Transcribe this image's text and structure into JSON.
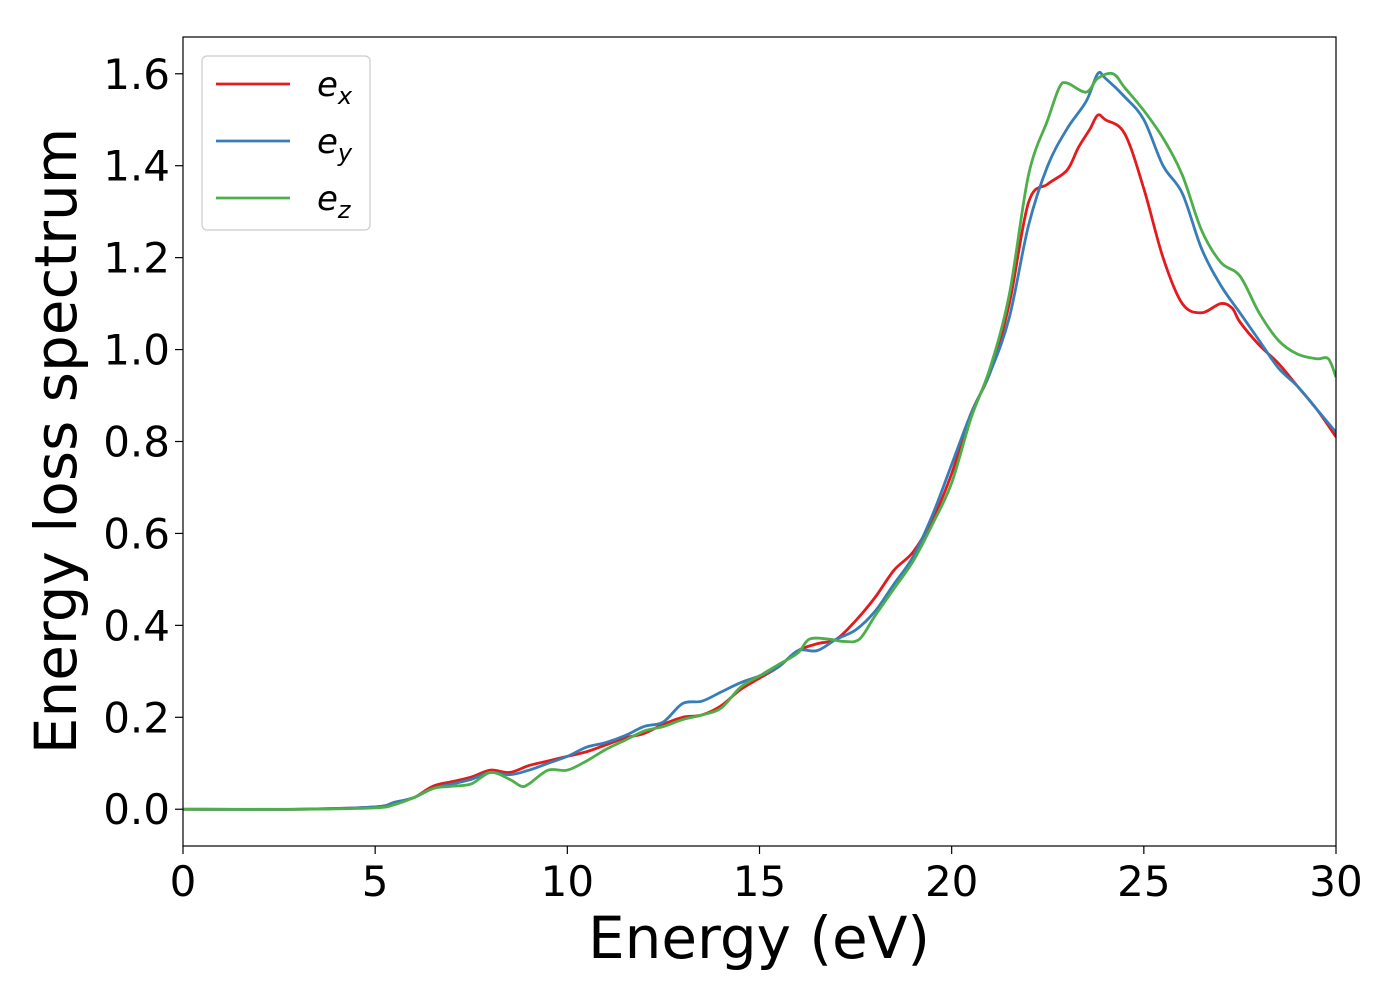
{
  "chart_data": {
    "type": "line",
    "xlabel": "Energy (eV)",
    "ylabel": "Energy loss spectrum",
    "xlim": [
      0,
      30
    ],
    "ylim": [
      -0.08,
      1.68
    ],
    "xticks": [
      0,
      5,
      10,
      15,
      20,
      25,
      30
    ],
    "xtick_labels": [
      "0",
      "5",
      "10",
      "15",
      "20",
      "25",
      "30"
    ],
    "yticks": [
      0.0,
      0.2,
      0.4,
      0.6,
      0.8,
      1.0,
      1.2,
      1.4,
      1.6
    ],
    "ytick_labels": [
      "0.0",
      "0.2",
      "0.4",
      "0.6",
      "0.8",
      "1.0",
      "1.2",
      "1.4",
      "1.6"
    ],
    "grid": false,
    "legend": "top-left",
    "series": [
      {
        "name": "e_x",
        "label_base": "e",
        "label_sub": "x",
        "color": "#e41a1c",
        "x": [
          0,
          3,
          5,
          5.5,
          6,
          6.5,
          7,
          7.5,
          8,
          8.5,
          9,
          9.5,
          10,
          10.5,
          11,
          11.5,
          12,
          12.5,
          13,
          13.5,
          14,
          14.5,
          15,
          15.5,
          16,
          16.5,
          17,
          17.5,
          18,
          18.5,
          19,
          19.5,
          20,
          20.5,
          21,
          21.5,
          22,
          22.5,
          23,
          23.3,
          23.6,
          23.8,
          24,
          24.5,
          25,
          25.5,
          26,
          26.5,
          27,
          27.3,
          27.5,
          28,
          28.5,
          29,
          29.5,
          30
        ],
        "y": [
          0.0,
          0.0,
          0.005,
          0.015,
          0.025,
          0.05,
          0.06,
          0.07,
          0.085,
          0.08,
          0.095,
          0.105,
          0.115,
          0.125,
          0.14,
          0.155,
          0.165,
          0.185,
          0.2,
          0.205,
          0.225,
          0.26,
          0.285,
          0.31,
          0.345,
          0.36,
          0.37,
          0.41,
          0.46,
          0.52,
          0.56,
          0.63,
          0.73,
          0.86,
          0.95,
          1.1,
          1.32,
          1.36,
          1.39,
          1.44,
          1.48,
          1.51,
          1.5,
          1.47,
          1.35,
          1.2,
          1.1,
          1.08,
          1.1,
          1.09,
          1.06,
          1.01,
          0.97,
          0.92,
          0.87,
          0.81
        ]
      },
      {
        "name": "e_y",
        "label_base": "e",
        "label_sub": "y",
        "color": "#377eb8",
        "x": [
          0,
          3,
          5,
          5.5,
          6,
          6.5,
          7,
          7.5,
          8,
          8.5,
          9,
          9.5,
          10,
          10.5,
          11,
          11.5,
          12,
          12.5,
          13,
          13.5,
          14,
          14.5,
          15,
          15.5,
          16,
          16.5,
          17,
          17.5,
          18,
          18.5,
          19,
          19.5,
          20,
          20.5,
          21,
          21.5,
          22,
          22.5,
          23,
          23.5,
          23.8,
          24,
          24.5,
          25,
          25.5,
          26,
          26.5,
          27,
          27.5,
          28,
          28.5,
          29,
          29.5,
          30
        ],
        "y": [
          0.0,
          0.0,
          0.005,
          0.015,
          0.025,
          0.045,
          0.055,
          0.065,
          0.08,
          0.075,
          0.085,
          0.1,
          0.115,
          0.135,
          0.145,
          0.16,
          0.18,
          0.19,
          0.23,
          0.235,
          0.255,
          0.275,
          0.29,
          0.31,
          0.345,
          0.345,
          0.37,
          0.39,
          0.43,
          0.49,
          0.55,
          0.64,
          0.75,
          0.86,
          0.95,
          1.07,
          1.27,
          1.4,
          1.48,
          1.54,
          1.6,
          1.59,
          1.55,
          1.5,
          1.4,
          1.34,
          1.22,
          1.14,
          1.08,
          1.02,
          0.96,
          0.92,
          0.87,
          0.82
        ]
      },
      {
        "name": "e_z",
        "label_base": "e",
        "label_sub": "z",
        "color": "#4daf4a",
        "x": [
          0,
          3,
          5,
          5.5,
          6,
          6.5,
          7,
          7.5,
          8,
          8.5,
          8.8,
          9,
          9.5,
          10,
          10.5,
          11,
          11.5,
          12,
          12.5,
          13,
          13.5,
          14,
          14.5,
          15,
          15.5,
          16,
          16.3,
          16.8,
          17.2,
          17.6,
          18,
          18.5,
          19,
          19.5,
          20,
          20.5,
          21,
          21.5,
          22,
          22.5,
          22.8,
          23,
          23.5,
          23.8,
          24.2,
          24.5,
          25,
          25.5,
          26,
          26.5,
          27,
          27.5,
          28,
          28.5,
          29,
          29.5,
          29.8,
          30
        ],
        "y": [
          0.0,
          0.0,
          0.003,
          0.01,
          0.025,
          0.045,
          0.05,
          0.055,
          0.08,
          0.065,
          0.05,
          0.055,
          0.085,
          0.085,
          0.105,
          0.13,
          0.15,
          0.17,
          0.18,
          0.195,
          0.205,
          0.22,
          0.265,
          0.29,
          0.315,
          0.34,
          0.37,
          0.37,
          0.365,
          0.37,
          0.42,
          0.48,
          0.54,
          0.62,
          0.71,
          0.85,
          0.96,
          1.12,
          1.38,
          1.5,
          1.57,
          1.58,
          1.56,
          1.59,
          1.6,
          1.57,
          1.52,
          1.46,
          1.38,
          1.26,
          1.19,
          1.16,
          1.08,
          1.02,
          0.99,
          0.98,
          0.98,
          0.94
        ]
      }
    ]
  }
}
